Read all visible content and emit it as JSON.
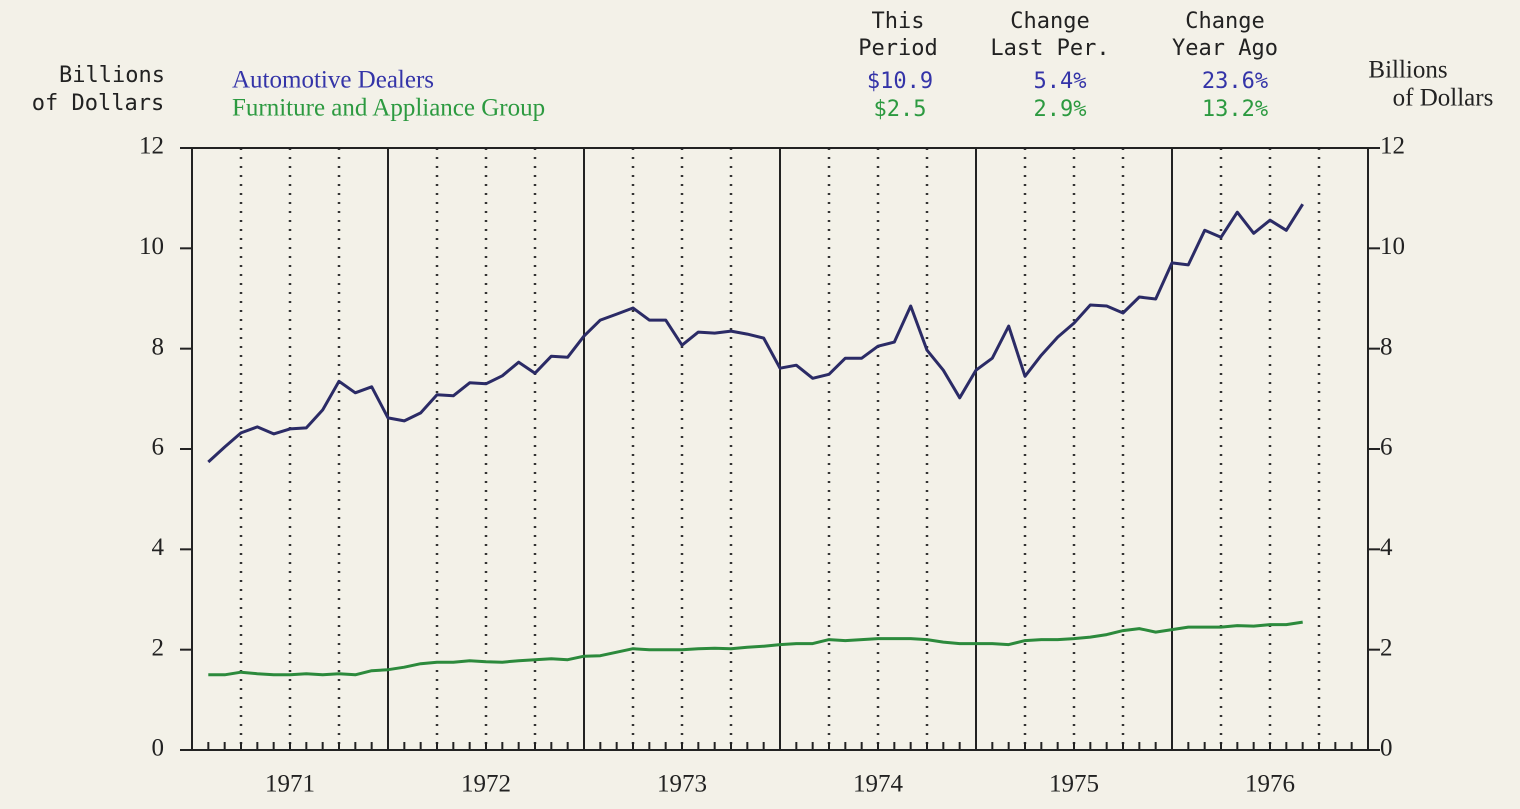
{
  "chart_data": {
    "type": "line",
    "y_label": [
      "Billions",
      "of Dollars"
    ],
    "y2_label": [
      "Billions",
      "of Dollars"
    ],
    "summary": {
      "headers": [
        [
          "This",
          "Period"
        ],
        [
          "Change",
          "Last Per."
        ],
        [
          "Change",
          "Year Ago"
        ]
      ],
      "rows": [
        [
          "$10.9",
          "5.4%",
          "23.6%"
        ],
        [
          "$2.5",
          "2.9%",
          "13.2%"
        ]
      ]
    },
    "xlim": [
      1971,
      1977
    ],
    "xticks": [
      {
        "value": 1971.5,
        "label": "1971"
      },
      {
        "value": 1972.5,
        "label": "1972"
      },
      {
        "value": 1973.5,
        "label": "1973"
      },
      {
        "value": 1974.5,
        "label": "1974"
      },
      {
        "value": 1975.5,
        "label": "1975"
      },
      {
        "value": 1976.5,
        "label": "1976"
      }
    ],
    "ylim": [
      0,
      12
    ],
    "yticks": [
      0,
      2,
      4,
      6,
      8,
      10,
      12
    ],
    "y2lim": [
      0,
      12
    ],
    "y2ticks": [
      0,
      2,
      4,
      6,
      8,
      10,
      12
    ],
    "x": [
      1971.083,
      1971.167,
      1971.25,
      1971.333,
      1971.417,
      1971.5,
      1971.583,
      1971.667,
      1971.75,
      1971.833,
      1971.917,
      1972.0,
      1972.083,
      1972.167,
      1972.25,
      1972.333,
      1972.417,
      1972.5,
      1972.583,
      1972.667,
      1972.75,
      1972.833,
      1972.917,
      1973.0,
      1973.083,
      1973.167,
      1973.25,
      1973.333,
      1973.417,
      1973.5,
      1973.583,
      1973.667,
      1973.75,
      1973.833,
      1973.917,
      1974.0,
      1974.083,
      1974.167,
      1974.25,
      1974.333,
      1974.417,
      1974.5,
      1974.583,
      1974.667,
      1974.75,
      1974.833,
      1974.917,
      1975.0,
      1975.083,
      1975.167,
      1975.25,
      1975.333,
      1975.417,
      1975.5,
      1975.583,
      1975.667,
      1975.75,
      1975.833,
      1975.917,
      1976.0,
      1976.083,
      1976.167,
      1976.25,
      1976.333,
      1976.417,
      1976.5,
      1976.583,
      1976.667
    ],
    "series": [
      {
        "name": "Automotive Dealers",
        "color": "#2b2b66",
        "label_color": "#3434a8",
        "values": [
          5.74,
          6.04,
          6.32,
          6.44,
          6.3,
          6.4,
          6.42,
          6.78,
          7.35,
          7.12,
          7.24,
          6.62,
          6.56,
          6.72,
          7.08,
          7.06,
          7.32,
          7.3,
          7.46,
          7.73,
          7.51,
          7.85,
          7.83,
          8.25,
          8.57,
          8.69,
          8.81,
          8.57,
          8.57,
          8.07,
          8.33,
          8.31,
          8.35,
          8.29,
          8.21,
          7.61,
          7.67,
          7.41,
          7.49,
          7.81,
          7.81,
          8.05,
          8.13,
          8.85,
          7.97,
          7.57,
          7.02,
          7.57,
          7.81,
          8.45,
          7.45,
          7.87,
          8.23,
          8.51,
          8.87,
          8.85,
          8.71,
          9.03,
          8.99,
          9.71,
          9.67,
          10.36,
          10.22,
          10.72,
          10.3,
          10.56,
          10.36,
          10.88
        ]
      },
      {
        "name": "Furniture and Appliance Group",
        "color": "#2c8a3c",
        "label_color": "#2c9a40",
        "values": [
          1.5,
          1.5,
          1.55,
          1.52,
          1.5,
          1.5,
          1.52,
          1.5,
          1.52,
          1.5,
          1.58,
          1.6,
          1.65,
          1.72,
          1.75,
          1.75,
          1.78,
          1.76,
          1.75,
          1.78,
          1.8,
          1.82,
          1.8,
          1.87,
          1.88,
          1.95,
          2.02,
          2.0,
          2.0,
          2.0,
          2.02,
          2.03,
          2.02,
          2.05,
          2.07,
          2.1,
          2.12,
          2.12,
          2.2,
          2.18,
          2.2,
          2.22,
          2.22,
          2.22,
          2.2,
          2.15,
          2.12,
          2.12,
          2.12,
          2.1,
          2.18,
          2.2,
          2.2,
          2.22,
          2.25,
          2.3,
          2.38,
          2.42,
          2.35,
          2.4,
          2.45,
          2.45,
          2.45,
          2.48,
          2.47,
          2.5,
          2.5,
          2.55
        ]
      }
    ]
  }
}
